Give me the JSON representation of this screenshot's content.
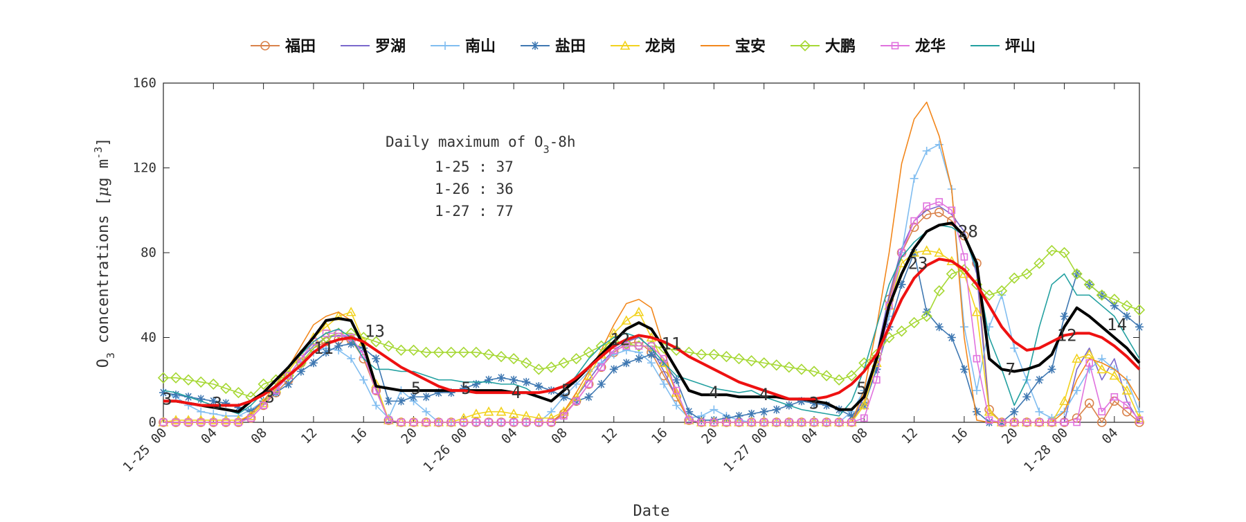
{
  "chart_data": {
    "type": "line",
    "x_label": "Date",
    "y_label": [
      "O",
      "3",
      " concentrations [",
      "μ",
      "g m",
      "-3",
      "]"
    ],
    "stats_title": [
      "Daily maximum of O",
      "3",
      "-8h"
    ],
    "stats": [
      "1-25 : 37",
      "1-26 : 36",
      "1-27 : 77"
    ],
    "xlim": [
      0,
      78
    ],
    "ylim": [
      0,
      160
    ],
    "yticks": [
      0,
      40,
      80,
      120,
      160
    ],
    "xticks": [
      {
        "value": 0,
        "label": "1-25 00"
      },
      {
        "value": 4,
        "label": "04"
      },
      {
        "value": 8,
        "label": "08"
      },
      {
        "value": 12,
        "label": "12"
      },
      {
        "value": 16,
        "label": "16"
      },
      {
        "value": 20,
        "label": "20"
      },
      {
        "value": 24,
        "label": "1-26 00"
      },
      {
        "value": 28,
        "label": "04"
      },
      {
        "value": 32,
        "label": "08"
      },
      {
        "value": 36,
        "label": "12"
      },
      {
        "value": 40,
        "label": "16"
      },
      {
        "value": 44,
        "label": "20"
      },
      {
        "value": 48,
        "label": "1-27 00"
      },
      {
        "value": 52,
        "label": "04"
      },
      {
        "value": 56,
        "label": "08"
      },
      {
        "value": 60,
        "label": "12"
      },
      {
        "value": 64,
        "label": "16"
      },
      {
        "value": 68,
        "label": "20"
      },
      {
        "value": 72,
        "label": "1-28 00"
      },
      {
        "value": 76,
        "label": "04"
      }
    ],
    "legend": "top",
    "x": [
      0,
      1,
      2,
      3,
      4,
      5,
      6,
      7,
      8,
      9,
      10,
      11,
      12,
      13,
      14,
      15,
      16,
      17,
      18,
      19,
      20,
      21,
      22,
      23,
      24,
      25,
      26,
      27,
      28,
      29,
      30,
      31,
      32,
      33,
      34,
      35,
      36,
      37,
      38,
      39,
      40,
      41,
      42,
      43,
      44,
      45,
      46,
      47,
      48,
      49,
      50,
      51,
      52,
      53,
      54,
      55,
      56,
      57,
      58,
      59,
      60,
      61,
      62,
      63,
      64,
      65,
      66,
      67,
      68,
      69,
      70,
      71,
      72,
      73,
      74,
      75,
      76,
      77,
      78
    ],
    "series": [
      {
        "name": "福田",
        "color": "#d9824a",
        "marker": "circle",
        "values": [
          0,
          0,
          0,
          0,
          0,
          0,
          0,
          2,
          8,
          14,
          20,
          28,
          35,
          38,
          39,
          39,
          30,
          15,
          1,
          0,
          0,
          0,
          0,
          0,
          0,
          0,
          0,
          0,
          0,
          0,
          0,
          0,
          4,
          10,
          18,
          26,
          33,
          37,
          38,
          33,
          22,
          12,
          1,
          0,
          0,
          0,
          0,
          0,
          0,
          0,
          0,
          0,
          0,
          0,
          0,
          0,
          10,
          30,
          58,
          80,
          92,
          98,
          99,
          95,
          88,
          75,
          6,
          0,
          0,
          0,
          0,
          0,
          0,
          2,
          9,
          0,
          10,
          5,
          0
        ]
      },
      {
        "name": "罗湖",
        "color": "#7a68cc",
        "marker": "none",
        "values": [
          0,
          0,
          0,
          0,
          0,
          0,
          0,
          3,
          9,
          16,
          22,
          30,
          36,
          40,
          41,
          40,
          32,
          16,
          1,
          0,
          0,
          0,
          0,
          0,
          0,
          0,
          0,
          0,
          0,
          0,
          0,
          0,
          5,
          12,
          20,
          28,
          34,
          38,
          40,
          35,
          24,
          12,
          1,
          0,
          0,
          0,
          0,
          0,
          0,
          0,
          0,
          0,
          0,
          0,
          0,
          0,
          12,
          32,
          60,
          82,
          95,
          100,
          102,
          98,
          90,
          70,
          5,
          0,
          0,
          0,
          0,
          0,
          0,
          25,
          35,
          20,
          30,
          10,
          0
        ]
      },
      {
        "name": "南山",
        "color": "#80bdf0",
        "marker": "plus",
        "values": [
          14,
          12,
          8,
          5,
          4,
          3,
          3,
          6,
          10,
          16,
          22,
          28,
          33,
          35,
          34,
          30,
          20,
          8,
          2,
          15,
          10,
          5,
          0,
          0,
          0,
          0,
          0,
          0,
          0,
          0,
          0,
          5,
          12,
          18,
          24,
          28,
          32,
          34,
          33,
          28,
          18,
          8,
          2,
          3,
          6,
          3,
          1,
          0,
          0,
          0,
          0,
          0,
          0,
          0,
          0,
          5,
          15,
          30,
          50,
          80,
          115,
          128,
          131,
          110,
          45,
          15,
          45,
          60,
          35,
          20,
          5,
          2,
          5,
          15,
          25,
          30,
          25,
          20,
          5
        ]
      },
      {
        "name": "盐田",
        "color": "#3f78b2",
        "marker": "asterisk",
        "values": [
          14,
          13,
          12,
          11,
          10,
          9,
          7,
          5,
          10,
          14,
          18,
          24,
          28,
          33,
          36,
          37,
          35,
          30,
          10,
          10,
          12,
          12,
          14,
          14,
          16,
          18,
          20,
          21,
          20,
          19,
          17,
          15,
          12,
          10,
          12,
          18,
          25,
          28,
          30,
          32,
          28,
          20,
          5,
          1,
          1,
          2,
          3,
          4,
          5,
          6,
          8,
          10,
          9,
          8,
          6,
          3,
          8,
          25,
          45,
          65,
          80,
          52,
          45,
          40,
          25,
          5,
          0,
          0,
          5,
          12,
          20,
          25,
          50,
          70,
          65,
          60,
          55,
          50,
          45
        ]
      },
      {
        "name": "龙岗",
        "color": "#f2d21e",
        "marker": "triangle",
        "values": [
          0,
          1,
          1,
          1,
          1,
          1,
          1,
          3,
          9,
          16,
          24,
          32,
          40,
          45,
          50,
          52,
          38,
          18,
          1,
          0,
          0,
          0,
          0,
          0,
          2,
          4,
          5,
          5,
          4,
          3,
          2,
          2,
          5,
          12,
          22,
          32,
          42,
          48,
          52,
          40,
          28,
          14,
          1,
          0,
          0,
          0,
          0,
          0,
          0,
          0,
          0,
          0,
          0,
          0,
          0,
          0,
          8,
          28,
          55,
          75,
          80,
          81,
          80,
          76,
          70,
          52,
          5,
          0,
          0,
          0,
          0,
          0,
          10,
          30,
          32,
          25,
          22,
          15,
          2
        ]
      },
      {
        "name": "宝安",
        "color": "#f2871c",
        "marker": "none",
        "values": [
          0,
          0,
          0,
          0,
          0,
          0,
          0,
          4,
          10,
          18,
          26,
          36,
          46,
          50,
          52,
          48,
          35,
          15,
          1,
          0,
          0,
          0,
          0,
          0,
          0,
          0,
          0,
          0,
          0,
          0,
          0,
          0,
          5,
          14,
          24,
          34,
          46,
          56,
          58,
          54,
          35,
          12,
          1,
          0,
          0,
          0,
          0,
          0,
          0,
          0,
          0,
          0,
          0,
          0,
          0,
          0,
          15,
          45,
          80,
          122,
          143,
          151,
          135,
          110,
          40,
          1,
          0,
          0,
          0,
          0,
          0,
          0,
          5,
          20,
          30,
          28,
          25,
          20,
          10
        ]
      },
      {
        "name": "大鹏",
        "color": "#a6d834",
        "marker": "diamond",
        "values": [
          21,
          21,
          20,
          19,
          18,
          16,
          14,
          12,
          18,
          20,
          22,
          28,
          35,
          40,
          42,
          42,
          40,
          38,
          36,
          34,
          34,
          33,
          33,
          33,
          33,
          33,
          32,
          31,
          30,
          28,
          25,
          26,
          28,
          30,
          33,
          36,
          38,
          37,
          36,
          36,
          35,
          34,
          33,
          32,
          32,
          31,
          30,
          29,
          28,
          27,
          26,
          25,
          24,
          22,
          20,
          22,
          28,
          32,
          40,
          43,
          47,
          50,
          62,
          70,
          72,
          65,
          60,
          62,
          68,
          70,
          75,
          81,
          80,
          70,
          65,
          60,
          58,
          55,
          53
        ]
      },
      {
        "name": "龙华",
        "color": "#e072de",
        "marker": "square",
        "values": [
          0,
          0,
          0,
          0,
          0,
          0,
          0,
          2,
          8,
          15,
          22,
          30,
          38,
          42,
          42,
          40,
          32,
          15,
          1,
          0,
          0,
          0,
          0,
          0,
          0,
          0,
          0,
          0,
          0,
          0,
          0,
          0,
          3,
          10,
          18,
          26,
          34,
          36,
          36,
          36,
          30,
          15,
          1,
          0,
          0,
          0,
          0,
          0,
          0,
          0,
          0,
          0,
          0,
          0,
          0,
          0,
          2,
          20,
          55,
          80,
          95,
          102,
          104,
          100,
          78,
          30,
          1,
          0,
          0,
          0,
          0,
          0,
          0,
          0,
          28,
          5,
          12,
          8,
          1
        ]
      },
      {
        "name": "坪山",
        "color": "#22a0a0",
        "marker": "none",
        "values": [
          15,
          14,
          12,
          10,
          8,
          6,
          4,
          8,
          14,
          20,
          26,
          32,
          38,
          42,
          44,
          40,
          30,
          25,
          25,
          24,
          24,
          22,
          20,
          20,
          19,
          19,
          19,
          18,
          18,
          16,
          12,
          10,
          15,
          22,
          30,
          36,
          40,
          42,
          40,
          35,
          28,
          22,
          20,
          18,
          16,
          15,
          14,
          15,
          12,
          10,
          8,
          6,
          5,
          4,
          3,
          10,
          25,
          45,
          65,
          78,
          85,
          90,
          93,
          92,
          88,
          72,
          40,
          25,
          8,
          20,
          45,
          65,
          70,
          60,
          60,
          55,
          50,
          40,
          30
        ]
      },
      {
        "color": "#000000",
        "marker": "none",
        "line_width": 4,
        "values": [
          10,
          10,
          9,
          8,
          7,
          6,
          5,
          10,
          14,
          20,
          26,
          33,
          40,
          48,
          49,
          48,
          36,
          17,
          16,
          15,
          15,
          15,
          15,
          15,
          15,
          15,
          15,
          15,
          14,
          14,
          12,
          10,
          15,
          20,
          26,
          32,
          38,
          44,
          47,
          44,
          35,
          25,
          15,
          13,
          13,
          13,
          12,
          12,
          12,
          12,
          11,
          11,
          10,
          9,
          6,
          6,
          12,
          30,
          55,
          70,
          82,
          90,
          93,
          94,
          88,
          75,
          30,
          25,
          24,
          25,
          27,
          32,
          45,
          54,
          50,
          45,
          40,
          35,
          28
        ]
      },
      {
        "color": "#ee1111",
        "marker": "none",
        "line_width": 4,
        "values": [
          10,
          10,
          9,
          8,
          8,
          8,
          8,
          10,
          13,
          17,
          22,
          27,
          33,
          37,
          39,
          40,
          38,
          34,
          30,
          26,
          23,
          20,
          17,
          15,
          15,
          14,
          14,
          14,
          14,
          14,
          14,
          15,
          17,
          21,
          26,
          31,
          36,
          39,
          41,
          40,
          38,
          35,
          31,
          28,
          25,
          22,
          19,
          17,
          15,
          13,
          11,
          11,
          11,
          12,
          14,
          18,
          24,
          32,
          45,
          58,
          68,
          74,
          77,
          76,
          72,
          65,
          55,
          45,
          38,
          34,
          35,
          38,
          41,
          42,
          42,
          40,
          36,
          31,
          25
        ]
      }
    ],
    "annotations": [
      {
        "x": 0.3,
        "y": 11,
        "text": "3"
      },
      {
        "x": 4.3,
        "y": 9,
        "text": "3"
      },
      {
        "x": 8.5,
        "y": 12,
        "text": "3"
      },
      {
        "x": 12.8,
        "y": 35,
        "text": "11"
      },
      {
        "x": 16.9,
        "y": 43,
        "text": "13"
      },
      {
        "x": 20.2,
        "y": 16,
        "text": "5"
      },
      {
        "x": 24.2,
        "y": 16,
        "text": "5"
      },
      {
        "x": 28.2,
        "y": 14,
        "text": "4"
      },
      {
        "x": 32.2,
        "y": 15,
        "text": "5"
      },
      {
        "x": 36.5,
        "y": 39,
        "text": "12"
      },
      {
        "x": 40.6,
        "y": 37,
        "text": "11"
      },
      {
        "x": 44,
        "y": 14,
        "text": "4"
      },
      {
        "x": 48,
        "y": 13,
        "text": "4"
      },
      {
        "x": 52,
        "y": 9,
        "text": "3"
      },
      {
        "x": 55.8,
        "y": 16,
        "text": "5"
      },
      {
        "x": 60.3,
        "y": 75,
        "text": "23"
      },
      {
        "x": 64.3,
        "y": 90,
        "text": "28"
      },
      {
        "x": 67.7,
        "y": 25,
        "text": "7"
      },
      {
        "x": 72.2,
        "y": 41,
        "text": "12"
      },
      {
        "x": 76.2,
        "y": 46,
        "text": "14"
      }
    ]
  }
}
